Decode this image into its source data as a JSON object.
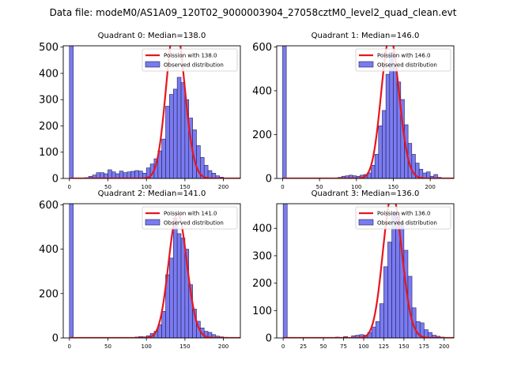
{
  "figure": {
    "suptitle": "Data file: modeM0/AS1A09_120T02_9000003904_27058cztM0_level2_quad_clean.evt"
  },
  "colors": {
    "bar_fill": "#7b7bf0",
    "bar_edge": "#1f1f5e",
    "curve": "#e8161c"
  },
  "chart_data": [
    {
      "type": "bar",
      "title": "Quadrant 0: Median=138.0",
      "median": 138.0,
      "bin_width": 5,
      "xlim": [
        -8,
        222
      ],
      "ylim": [
        0,
        505
      ],
      "xticks": [
        0,
        50,
        100,
        150,
        200
      ],
      "yticks": [
        0,
        100,
        200,
        300,
        400,
        500
      ],
      "legend": {
        "location": "top-right",
        "entries": [
          "Poission with 138.0",
          "Observed distribution"
        ]
      },
      "bins": [
        [
          0,
          505
        ],
        [
          5,
          0
        ],
        [
          10,
          0
        ],
        [
          15,
          1
        ],
        [
          20,
          3
        ],
        [
          25,
          8
        ],
        [
          30,
          13
        ],
        [
          35,
          22
        ],
        [
          40,
          22
        ],
        [
          45,
          18
        ],
        [
          50,
          33
        ],
        [
          55,
          25
        ],
        [
          60,
          18
        ],
        [
          65,
          28
        ],
        [
          70,
          22
        ],
        [
          75,
          25
        ],
        [
          80,
          27
        ],
        [
          85,
          30
        ],
        [
          90,
          28
        ],
        [
          95,
          20
        ],
        [
          100,
          40
        ],
        [
          105,
          55
        ],
        [
          110,
          75
        ],
        [
          115,
          105
        ],
        [
          120,
          150
        ],
        [
          125,
          275
        ],
        [
          130,
          320
        ],
        [
          135,
          340
        ],
        [
          140,
          385
        ],
        [
          145,
          365
        ],
        [
          150,
          300
        ],
        [
          155,
          230
        ],
        [
          160,
          185
        ],
        [
          165,
          125
        ],
        [
          170,
          80
        ],
        [
          175,
          50
        ],
        [
          180,
          30
        ],
        [
          185,
          20
        ],
        [
          190,
          10
        ],
        [
          195,
          5
        ],
        [
          200,
          2
        ]
      ]
    },
    {
      "type": "bar",
      "title": "Quadrant 1: Median=146.0",
      "median": 146.0,
      "bin_width": 5,
      "xlim": [
        -8,
        232
      ],
      "ylim": [
        0,
        605
      ],
      "xticks": [
        0,
        50,
        100,
        150,
        200
      ],
      "yticks": [
        0,
        200,
        400,
        600
      ],
      "legend": {
        "location": "top-right",
        "entries": [
          "Poission with 146.0",
          "Observed distribution"
        ]
      },
      "bins": [
        [
          0,
          605
        ],
        [
          5,
          0
        ],
        [
          75,
          5
        ],
        [
          80,
          10
        ],
        [
          85,
          12
        ],
        [
          90,
          15
        ],
        [
          95,
          12
        ],
        [
          100,
          10
        ],
        [
          105,
          15
        ],
        [
          110,
          18
        ],
        [
          115,
          25
        ],
        [
          120,
          60
        ],
        [
          125,
          110
        ],
        [
          130,
          240
        ],
        [
          135,
          310
        ],
        [
          140,
          475
        ],
        [
          145,
          575
        ],
        [
          150,
          510
        ],
        [
          155,
          440
        ],
        [
          160,
          360
        ],
        [
          165,
          245
        ],
        [
          170,
          160
        ],
        [
          175,
          110
        ],
        [
          180,
          70
        ],
        [
          185,
          42
        ],
        [
          190,
          25
        ],
        [
          195,
          30
        ],
        [
          200,
          10
        ],
        [
          205,
          18
        ],
        [
          210,
          5
        ],
        [
          215,
          2
        ]
      ]
    },
    {
      "type": "bar",
      "title": "Quadrant 2: Median=141.0",
      "median": 141.0,
      "bin_width": 5,
      "xlim": [
        -8,
        222
      ],
      "ylim": [
        0,
        605
      ],
      "xticks": [
        0,
        50,
        100,
        150,
        200
      ],
      "yticks": [
        0,
        200,
        400,
        600
      ],
      "legend": {
        "location": "top-right",
        "entries": [
          "Poission with 141.0",
          "Observed distribution"
        ]
      },
      "bins": [
        [
          0,
          605
        ],
        [
          5,
          0
        ],
        [
          80,
          2
        ],
        [
          85,
          4
        ],
        [
          90,
          6
        ],
        [
          95,
          5
        ],
        [
          100,
          10
        ],
        [
          105,
          20
        ],
        [
          110,
          30
        ],
        [
          115,
          60
        ],
        [
          120,
          120
        ],
        [
          125,
          285
        ],
        [
          130,
          360
        ],
        [
          135,
          540
        ],
        [
          140,
          470
        ],
        [
          145,
          450
        ],
        [
          150,
          400
        ],
        [
          155,
          240
        ],
        [
          160,
          130
        ],
        [
          165,
          75
        ],
        [
          170,
          45
        ],
        [
          175,
          30
        ],
        [
          180,
          25
        ],
        [
          185,
          15
        ],
        [
          190,
          8
        ],
        [
          195,
          5
        ],
        [
          200,
          3
        ],
        [
          205,
          2
        ]
      ]
    },
    {
      "type": "bar",
      "title": "Quadrant 3: Median=136.0",
      "median": 136.0,
      "bin_width": 5,
      "xlim": [
        -8,
        212
      ],
      "ylim": [
        0,
        490
      ],
      "xticks": [
        0,
        25,
        50,
        75,
        100,
        125,
        150,
        175,
        200
      ],
      "yticks": [
        0,
        100,
        200,
        300,
        400
      ],
      "legend": {
        "location": "top-right",
        "entries": [
          "Poission with 136.0",
          "Observed distribution"
        ]
      },
      "bins": [
        [
          0,
          490
        ],
        [
          5,
          0
        ],
        [
          65,
          3
        ],
        [
          75,
          5
        ],
        [
          85,
          8
        ],
        [
          90,
          10
        ],
        [
          95,
          12
        ],
        [
          100,
          10
        ],
        [
          105,
          20
        ],
        [
          110,
          40
        ],
        [
          115,
          60
        ],
        [
          120,
          125
        ],
        [
          125,
          260
        ],
        [
          130,
          350
        ],
        [
          135,
          460
        ],
        [
          140,
          450
        ],
        [
          145,
          420
        ],
        [
          150,
          320
        ],
        [
          155,
          225
        ],
        [
          160,
          110
        ],
        [
          165,
          60
        ],
        [
          170,
          55
        ],
        [
          175,
          30
        ],
        [
          180,
          20
        ],
        [
          185,
          10
        ],
        [
          190,
          6
        ],
        [
          195,
          3
        ],
        [
          200,
          2
        ]
      ]
    }
  ]
}
